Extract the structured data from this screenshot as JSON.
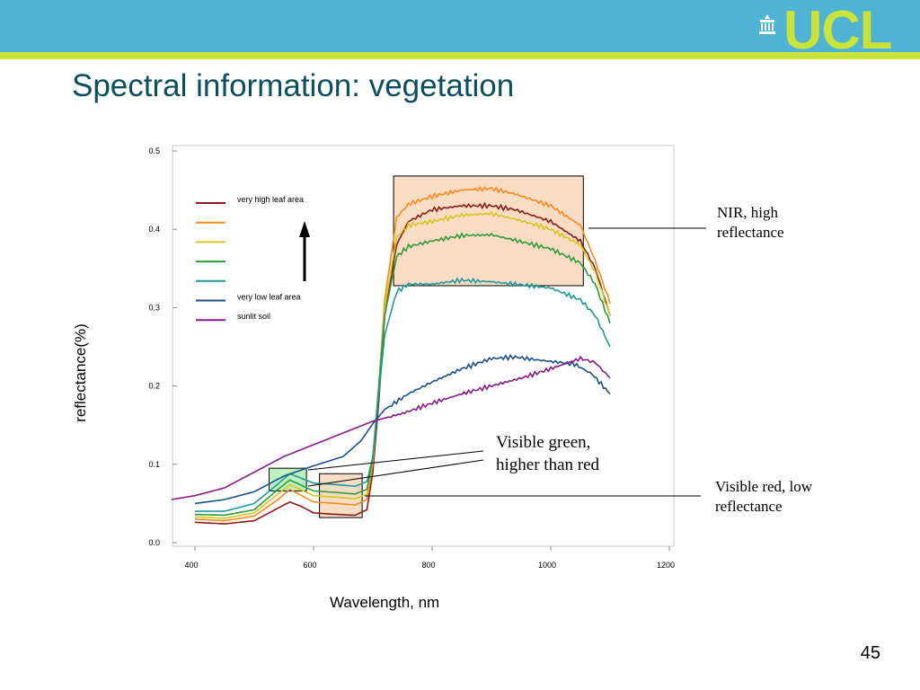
{
  "header": {
    "logo_text": "UCL",
    "title": "Spectral information: vegetation"
  },
  "page_number": "45",
  "annotations": {
    "nir": [
      "NIR, high",
      "reflectance"
    ],
    "green": [
      "Visible green,",
      "higher than red"
    ],
    "red": [
      "Visible red, low",
      "reflectance"
    ]
  },
  "colors": {
    "header_blue": "#4fb3d4",
    "header_green": "#c9e33b",
    "title": "#0b4f5f",
    "highlight_peach": "#f9dcc4",
    "highlight_green": "#bdf2c0"
  },
  "chart_data": {
    "type": "line",
    "xlabel": "Wavelength, nm",
    "ylabel": "reflectance(%)",
    "xlim": [
      360,
      1200
    ],
    "ylim": [
      0.0,
      0.5
    ],
    "x_ticks": [
      400,
      600,
      800,
      1000,
      1200
    ],
    "y_ticks": [
      "0.0",
      "0.1",
      "0.2",
      "0.3",
      "0.4",
      "0.5"
    ],
    "legend_position": "top-left",
    "highlight_boxes": [
      {
        "label": "nir",
        "x": [
          735,
          1055
        ],
        "y": [
          0.328,
          0.468
        ],
        "color": "#f9dcc4"
      },
      {
        "label": "green",
        "x": [
          525,
          588
        ],
        "y": [
          0.066,
          0.095
        ],
        "color": "#bdf2c0"
      },
      {
        "label": "red",
        "x": [
          610,
          682
        ],
        "y": [
          0.032,
          0.088
        ],
        "color": "#f9dcc4"
      }
    ],
    "series": [
      {
        "name": "very high leaf area",
        "color": "#8b1a1a",
        "x": [
          400,
          450,
          500,
          540,
          560,
          580,
          600,
          640,
          670,
          690,
          700,
          710,
          720,
          740,
          760,
          800,
          850,
          900,
          940,
          1000,
          1050,
          1075,
          1100
        ],
        "y": [
          0.026,
          0.024,
          0.028,
          0.044,
          0.052,
          0.046,
          0.038,
          0.036,
          0.035,
          0.042,
          0.09,
          0.18,
          0.29,
          0.38,
          0.41,
          0.425,
          0.43,
          0.43,
          0.425,
          0.41,
          0.385,
          0.35,
          0.29
        ]
      },
      {
        "name": "",
        "color": "#f58a1f",
        "x": [
          400,
          450,
          500,
          540,
          560,
          580,
          600,
          640,
          670,
          690,
          700,
          710,
          720,
          740,
          760,
          800,
          850,
          900,
          940,
          1000,
          1050,
          1075,
          1100
        ],
        "y": [
          0.03,
          0.028,
          0.034,
          0.055,
          0.068,
          0.06,
          0.052,
          0.05,
          0.048,
          0.055,
          0.1,
          0.2,
          0.31,
          0.415,
          0.432,
          0.442,
          0.45,
          0.452,
          0.445,
          0.43,
          0.405,
          0.36,
          0.305
        ]
      },
      {
        "name": "",
        "color": "#d4c61a",
        "x": [
          400,
          450,
          500,
          540,
          560,
          580,
          600,
          640,
          670,
          690,
          700,
          710,
          720,
          740,
          760,
          800,
          850,
          900,
          940,
          1000,
          1050,
          1075,
          1100
        ],
        "y": [
          0.033,
          0.031,
          0.038,
          0.062,
          0.074,
          0.067,
          0.06,
          0.058,
          0.056,
          0.062,
          0.105,
          0.2,
          0.3,
          0.39,
          0.405,
          0.41,
          0.418,
          0.42,
          0.413,
          0.4,
          0.38,
          0.345,
          0.29
        ]
      },
      {
        "name": "",
        "color": "#2e9a3a",
        "x": [
          400,
          450,
          500,
          540,
          560,
          580,
          600,
          640,
          670,
          690,
          700,
          710,
          720,
          740,
          760,
          800,
          850,
          900,
          940,
          1000,
          1050,
          1075,
          1100
        ],
        "y": [
          0.036,
          0.035,
          0.042,
          0.068,
          0.08,
          0.073,
          0.066,
          0.064,
          0.062,
          0.068,
          0.108,
          0.2,
          0.29,
          0.365,
          0.378,
          0.385,
          0.392,
          0.393,
          0.386,
          0.375,
          0.357,
          0.33,
          0.28
        ]
      },
      {
        "name": "",
        "color": "#1e9a9a",
        "x": [
          400,
          450,
          500,
          540,
          560,
          580,
          600,
          640,
          670,
          690,
          700,
          710,
          720,
          740,
          760,
          800,
          850,
          900,
          940,
          1000,
          1050,
          1075,
          1100
        ],
        "y": [
          0.04,
          0.04,
          0.05,
          0.075,
          0.088,
          0.082,
          0.076,
          0.074,
          0.072,
          0.078,
          0.11,
          0.19,
          0.265,
          0.32,
          0.33,
          0.33,
          0.335,
          0.333,
          0.33,
          0.325,
          0.31,
          0.29,
          0.25
        ]
      },
      {
        "name": "very low leaf area",
        "color": "#1b4f8a",
        "x": [
          400,
          450,
          500,
          550,
          600,
          650,
          680,
          700,
          720,
          760,
          800,
          850,
          900,
          940,
          980,
          1040,
          1070,
          1100
        ],
        "y": [
          0.05,
          0.055,
          0.065,
          0.085,
          0.098,
          0.11,
          0.13,
          0.152,
          0.17,
          0.19,
          0.205,
          0.222,
          0.235,
          0.237,
          0.233,
          0.228,
          0.215,
          0.19
        ]
      },
      {
        "name": "sunlit soil",
        "color": "#8a1a8a",
        "x": [
          360,
          400,
          450,
          500,
          550,
          600,
          650,
          700,
          750,
          800,
          850,
          900,
          950,
          1000,
          1050,
          1075,
          1100
        ],
        "y": [
          0.055,
          0.06,
          0.07,
          0.09,
          0.11,
          0.125,
          0.14,
          0.155,
          0.165,
          0.178,
          0.19,
          0.2,
          0.21,
          0.222,
          0.235,
          0.23,
          0.21
        ]
      }
    ]
  }
}
